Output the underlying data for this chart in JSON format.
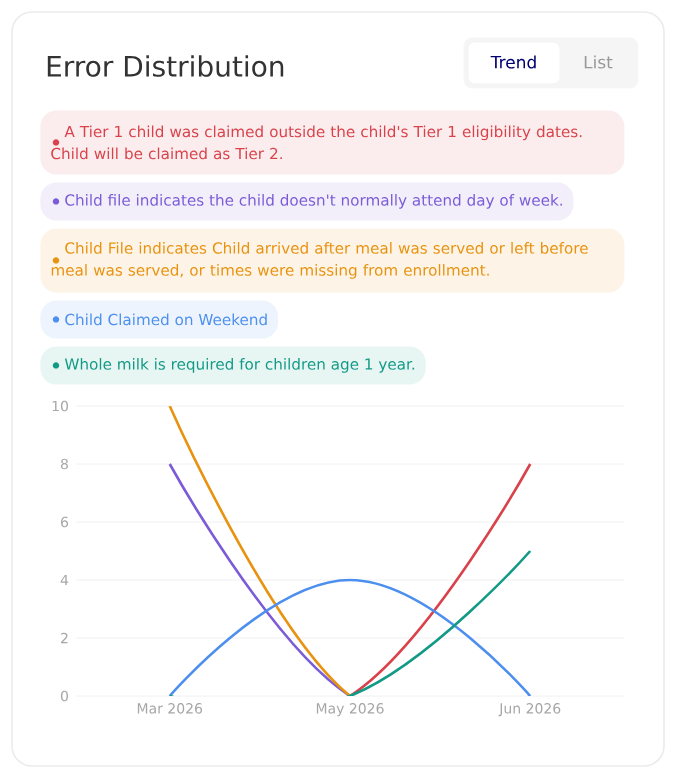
{
  "chart_data": {
    "type": "line",
    "title": "Error Distribution",
    "annotations": [
      "Trend",
      "List"
    ],
    "categories": [
      "Mar 2026",
      "May 2026",
      "Jun 2026"
    ],
    "series": [
      {
        "name": "A Tier 1 child was claimed outside the child's Tier 1 eligibility dates. Child will be claimed as Tier 2.",
        "color": "#d9424a",
        "values": [
          0,
          0,
          8
        ]
      },
      {
        "name": "Child file indicates the child doesn't normally attend day of week.",
        "color": "#7b5cd6",
        "values": [
          8,
          0,
          0
        ]
      },
      {
        "name": "Child File indicates Child arrived after meal was served or left before meal was served, or times were missing from enrollment.",
        "color": "#e8920f",
        "values": [
          10,
          0,
          0
        ]
      },
      {
        "name": "Child Claimed on Weekend",
        "color": "#4d8fef",
        "values": [
          0,
          4,
          0
        ]
      },
      {
        "name": "Whole milk is required for children age 1 year.",
        "color": "#139a86",
        "values": [
          0,
          0,
          5
        ]
      }
    ],
    "ylim": [
      0,
      10
    ],
    "yticks": [
      0,
      2,
      4,
      6,
      8,
      10
    ],
    "grid": "y",
    "legend": "top",
    "marker": "none",
    "line_style": "solid"
  }
}
